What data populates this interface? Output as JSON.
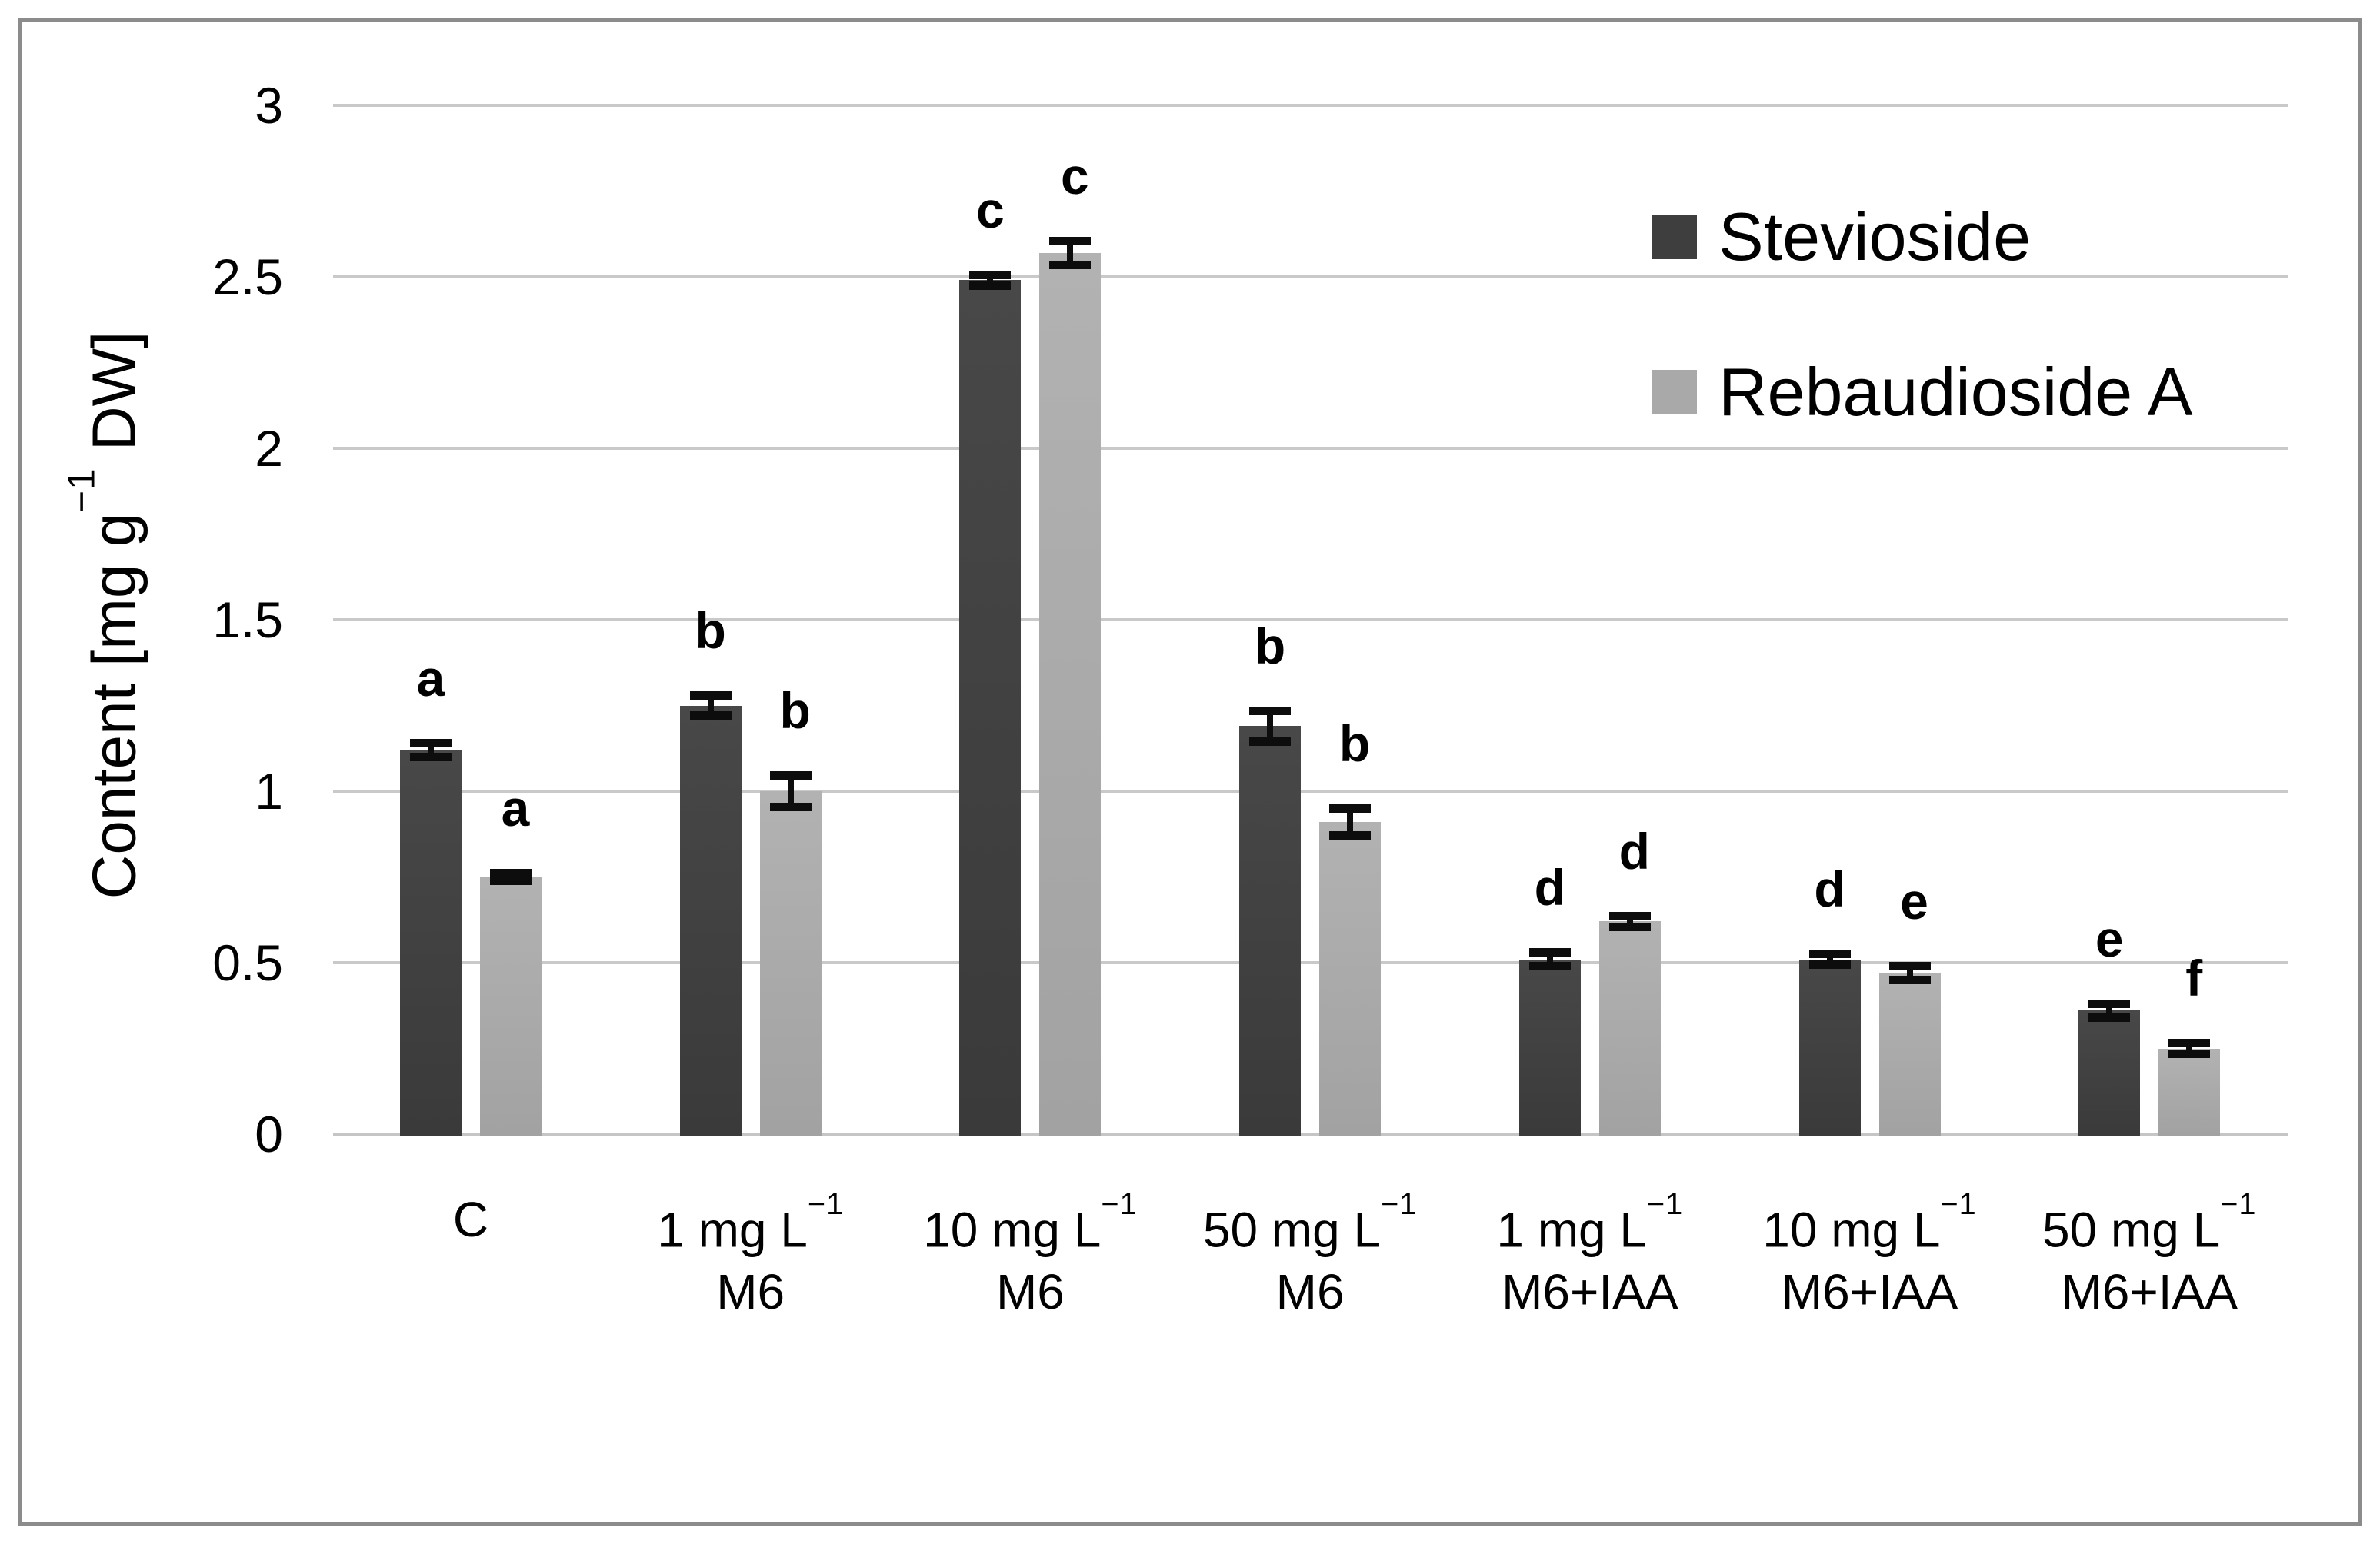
{
  "figure": {
    "background": "#ffffff",
    "frame_color": "#8c8c8c"
  },
  "chart_data": {
    "type": "bar",
    "title": "",
    "xlabel": "",
    "ylabel": "Content [mg g⁻¹ DW]",
    "ylim": [
      0,
      3
    ],
    "yticks": [
      3,
      2.5,
      2,
      1.5,
      1,
      0.5,
      0
    ],
    "grid": true,
    "gridline_color": "#c9c9c9",
    "axis_line_color": "#c5c5c5",
    "error_bar_color": "#0d0d0d",
    "text_color": "#000000",
    "legend_position": "upper-right-inside",
    "categories_line1": [
      "C",
      "1 mg L⁻¹",
      "10 mg L⁻¹",
      "50 mg L⁻¹",
      "1 mg L⁻¹",
      "10 mg L⁻¹",
      "50 mg L⁻¹"
    ],
    "categories_line2": [
      "",
      "M6",
      "M6",
      "M6",
      "M6+IAA",
      "M6+IAA",
      "M6+IAA"
    ],
    "series": [
      {
        "name": "Stevioside",
        "color": "#3e3e3e",
        "values": [
          1.12,
          1.25,
          2.49,
          1.19,
          0.51,
          0.51,
          0.36
        ],
        "errors": [
          0.02,
          0.03,
          0.015,
          0.045,
          0.02,
          0.015,
          0.02
        ],
        "sig_letters": [
          "a",
          "b",
          "c",
          "b",
          "d",
          "d",
          "e"
        ]
      },
      {
        "name": "Rebaudioside A",
        "color": "#a9a9a9",
        "values": [
          0.75,
          1.0,
          2.57,
          0.91,
          0.62,
          0.47,
          0.25
        ],
        "errors": [
          0.012,
          0.045,
          0.035,
          0.04,
          0.015,
          0.02,
          0.015
        ],
        "sig_letters": [
          "a",
          "b",
          "c",
          "b",
          "d",
          "e",
          "f"
        ]
      }
    ]
  }
}
